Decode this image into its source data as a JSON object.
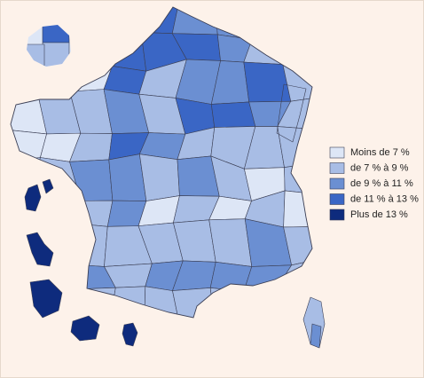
{
  "legend": {
    "items": [
      {
        "label": "Moins de 7 %",
        "color": "#dde6f6"
      },
      {
        "label": "de 7 % à 9 %",
        "color": "#a8bde5"
      },
      {
        "label": "de 9 % à 11 %",
        "color": "#6b8fd2"
      },
      {
        "label": "de 11 % à 13 %",
        "color": "#3a66c5"
      },
      {
        "label": "Plus de 13 %",
        "color": "#0e2b7d"
      }
    ]
  }
}
